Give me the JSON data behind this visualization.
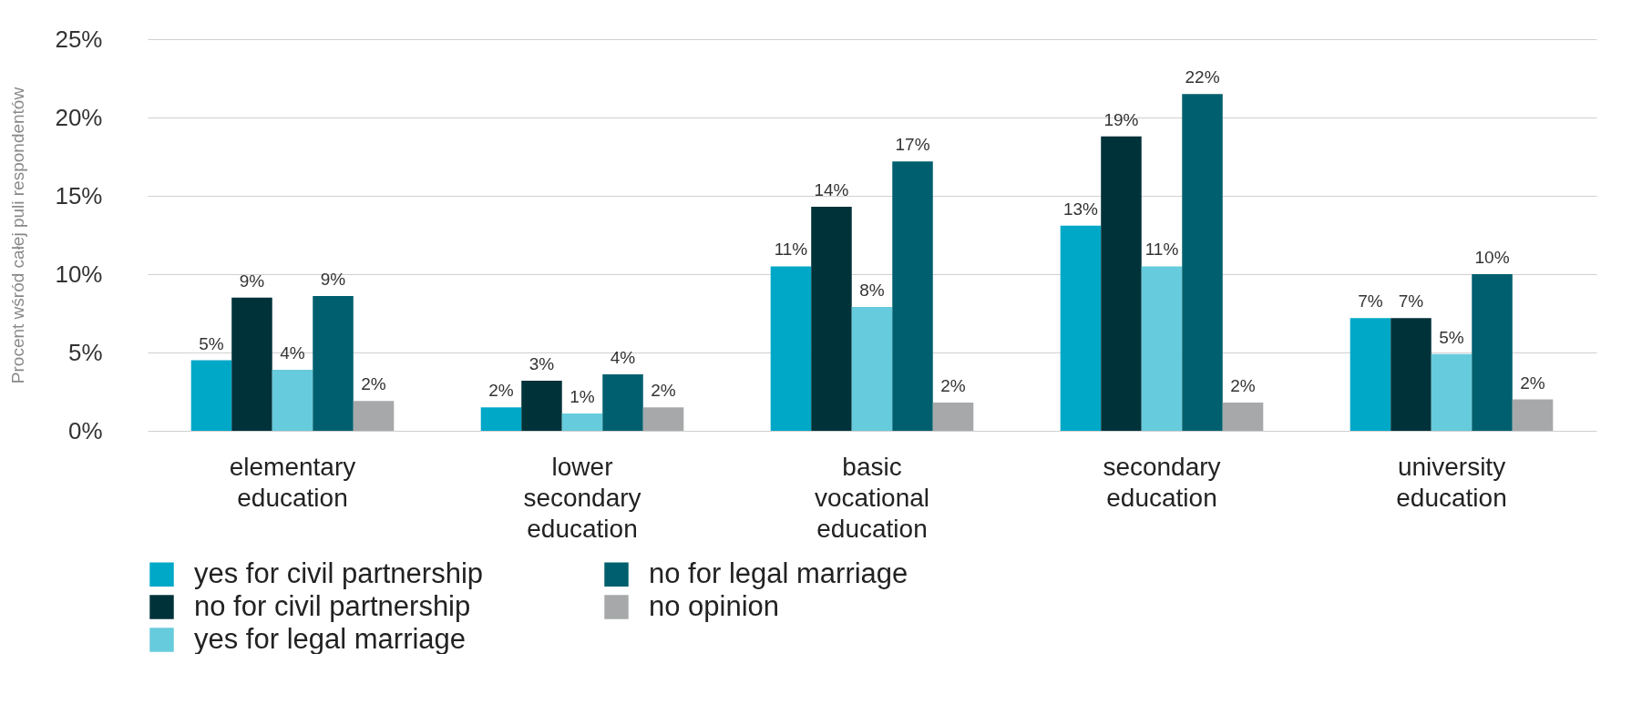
{
  "chart_data": {
    "type": "bar",
    "ylabel": "Procent wśród całej puli respondentów",
    "categories": [
      "elementary education",
      "lower secondary education",
      "basic vocational education",
      "secondary education",
      "university education"
    ],
    "series": [
      {
        "name": "yes for civil partnership",
        "color": "#00a8c8",
        "values": [
          4.5,
          1.5,
          10.5,
          13.1,
          7.2
        ],
        "value_labels": [
          "5%",
          "2%",
          "11%",
          "13%",
          "7%"
        ]
      },
      {
        "name": "no for civil partnership",
        "color": "#00323a",
        "values": [
          8.5,
          3.2,
          14.3,
          18.8,
          7.2
        ],
        "value_labels": [
          "9%",
          "3%",
          "14%",
          "19%",
          "7%"
        ]
      },
      {
        "name": "yes for legal marriage",
        "color": "#66cbdc",
        "values": [
          3.9,
          1.1,
          7.9,
          10.5,
          4.9
        ],
        "value_labels": [
          "4%",
          "1%",
          "8%",
          "11%",
          "5%"
        ]
      },
      {
        "name": "no for legal marriage",
        "color": "#005f6e",
        "values": [
          8.6,
          3.6,
          17.2,
          21.5,
          10.0
        ],
        "value_labels": [
          "9%",
          "4%",
          "17%",
          "22%",
          "10%"
        ]
      },
      {
        "name": "no opinion",
        "color": "#a6a8aa",
        "values": [
          1.9,
          1.5,
          1.8,
          1.8,
          2.0
        ],
        "value_labels": [
          "2%",
          "2%",
          "2%",
          "2%",
          "2%"
        ]
      }
    ],
    "ylim": [
      0,
      25
    ],
    "yticks": [
      {
        "value": 0,
        "label": "0%"
      },
      {
        "value": 5,
        "label": "5%"
      },
      {
        "value": 10,
        "label": "10%"
      },
      {
        "value": 15,
        "label": "15%"
      },
      {
        "value": 20,
        "label": "20%"
      },
      {
        "value": 25,
        "label": "25%"
      }
    ],
    "grid": "y",
    "legend": "bottom"
  }
}
